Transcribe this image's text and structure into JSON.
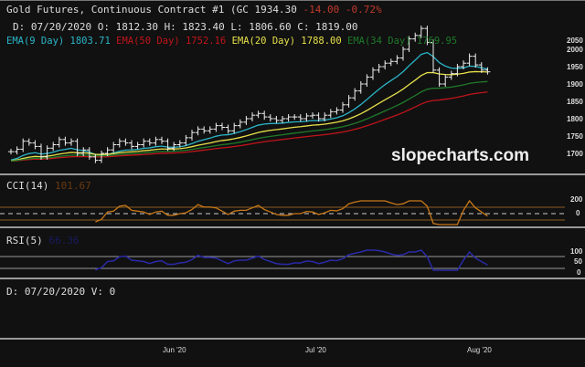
{
  "header": {
    "title": "Gold Futures, Continuous Contract #1 (GC 1934.30",
    "change": "-14.00 -0.72%",
    "ohlc": "D: 07/20/2020 O: 1812.30 H: 1823.40 L: 1806.60 C: 1819.00"
  },
  "emas": [
    {
      "label": "EMA(9 Day) 1803.71",
      "color": "#2bb5c8",
      "period": 9
    },
    {
      "label": "EMA(50 Day) 1752.16",
      "color": "#c0141a",
      "period": 50
    },
    {
      "label": "EMA(20 Day) 1788.00",
      "color": "#e6e04a",
      "period": 20
    },
    {
      "label": "EMA(34 Day) 1769.95",
      "color": "#1f7a2a",
      "period": 34
    }
  ],
  "watermark": "slopecharts.com",
  "price_axis": [
    "2050",
    "2000",
    "1950",
    "1900",
    "1850",
    "1800",
    "1750",
    "1700"
  ],
  "cci": {
    "label": "CCI(14)",
    "value": "101.67",
    "axis": [
      "200",
      "0"
    ],
    "color": "#c87818"
  },
  "rsi": {
    "label": "RSI(5)",
    "value": "66.36",
    "axis": [
      "100",
      "50",
      "0"
    ],
    "color": "#2a2aa8"
  },
  "volume": {
    "label": "D: 07/20/2020 V: 0"
  },
  "x_axis": [
    "Jun '20",
    "Jul '20",
    "Aug '20"
  ],
  "chart_data": {
    "type": "ohlc",
    "closes": [
      1705,
      1712,
      1735,
      1730,
      1720,
      1690,
      1715,
      1725,
      1740,
      1730,
      1735,
      1700,
      1710,
      1690,
      1680,
      1700,
      1710,
      1725,
      1735,
      1730,
      1720,
      1725,
      1735,
      1730,
      1740,
      1735,
      1715,
      1725,
      1730,
      1745,
      1760,
      1770,
      1765,
      1770,
      1780,
      1775,
      1765,
      1780,
      1790,
      1800,
      1810,
      1815,
      1805,
      1800,
      1795,
      1800,
      1805,
      1805,
      1800,
      1808,
      1810,
      1800,
      1810,
      1820,
      1825,
      1840,
      1860,
      1880,
      1900,
      1920,
      1940,
      1950,
      1960,
      1965,
      1975,
      2000,
      2030,
      2040,
      2060,
      2020,
      1940,
      1900,
      1920,
      1930,
      1950,
      1960,
      1980,
      1955,
      1940,
      1935
    ]
  }
}
